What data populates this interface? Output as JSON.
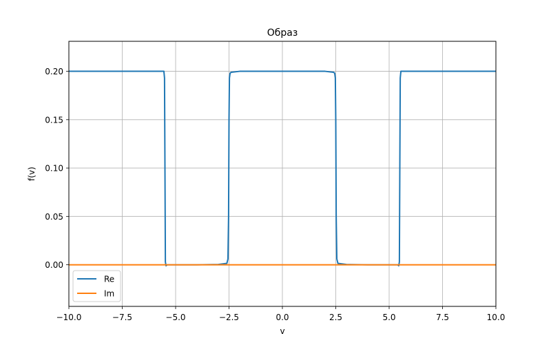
{
  "chart_data": {
    "type": "line",
    "title": "Образ",
    "xlabel": "v",
    "ylabel": "f(v)",
    "xlim": [
      -10,
      10
    ],
    "ylim": [
      -0.043,
      0.231
    ],
    "xticks": [
      -10,
      -7.5,
      -5,
      -2.5,
      0,
      2.5,
      5,
      7.5,
      10
    ],
    "xtick_labels": [
      "−10.0",
      "−7.5",
      "−5.0",
      "−2.5",
      "0.0",
      "2.5",
      "5.0",
      "7.5",
      "10.0"
    ],
    "yticks": [
      0,
      0.05,
      0.1,
      0.15,
      0.2
    ],
    "ytick_labels": [
      "0.00",
      "0.05",
      "0.10",
      "0.15",
      "0.20"
    ],
    "grid": true,
    "legend_position": "lower-left",
    "series": [
      {
        "name": "Re",
        "color": "#1f77b4",
        "x": [
          -10,
          -8,
          -6,
          -5.6,
          -5.55,
          -5.52,
          -5.5,
          -5.48,
          -5.45,
          -5.4,
          -5,
          -4,
          -3,
          -2.6,
          -2.55,
          -2.52,
          -2.5,
          -2.48,
          -2.45,
          -2.4,
          -2,
          0,
          2,
          2.4,
          2.45,
          2.48,
          2.5,
          2.52,
          2.55,
          2.6,
          3,
          4,
          5,
          5.4,
          5.45,
          5.48,
          5.5,
          5.52,
          5.55,
          5.6,
          6,
          8,
          10
        ],
        "y": [
          0.2,
          0.2,
          0.2,
          0.2,
          0.2,
          0.193,
          0.1,
          0.003,
          -0.001,
          0,
          0,
          0,
          0.0003,
          0.0015,
          0.006,
          0.05,
          0.15,
          0.193,
          0.198,
          0.199,
          0.2,
          0.2,
          0.2,
          0.199,
          0.198,
          0.193,
          0.15,
          0.05,
          0.006,
          0.0015,
          0.0003,
          0,
          0,
          0,
          -0.001,
          0.003,
          0.1,
          0.193,
          0.2,
          0.2,
          0.2,
          0.2,
          0.2
        ]
      },
      {
        "name": "Im",
        "color": "#ff7f0e",
        "x": [
          -10,
          10
        ],
        "y": [
          0,
          0
        ]
      }
    ]
  }
}
